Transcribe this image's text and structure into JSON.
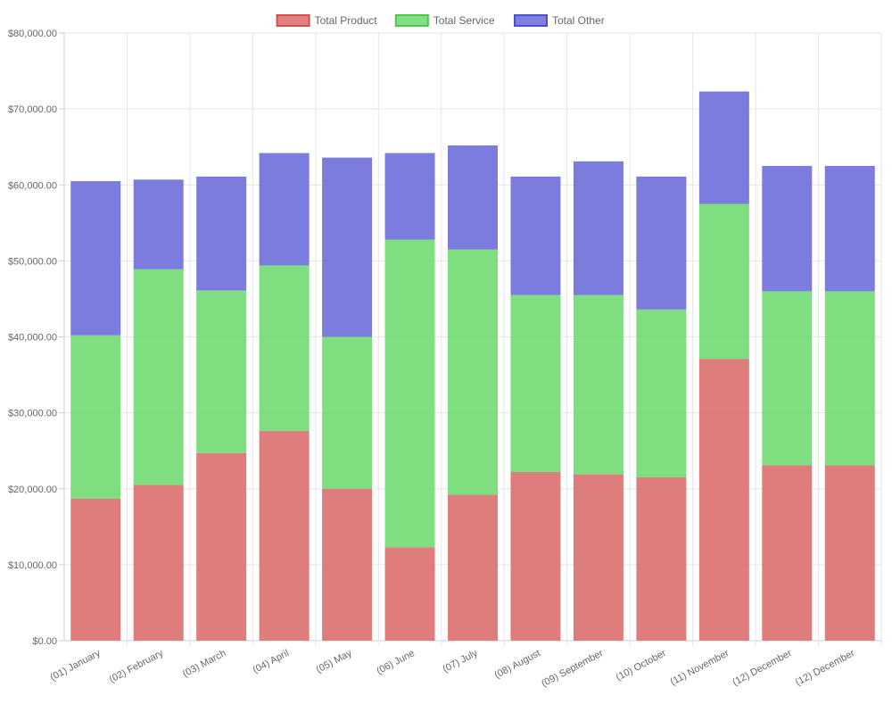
{
  "chart_data": {
    "type": "bar",
    "stacked": true,
    "categories": [
      "(01) January",
      "(02) February",
      "(03) March",
      "(04) April",
      "(05) May",
      "(06) June",
      "(07) July",
      "(08) August",
      "(09) September",
      "(10) October",
      "(11) November",
      "(12) December",
      "(12) December"
    ],
    "series": [
      {
        "name": "Total Product",
        "color": "#db6b6b",
        "border_color": "#d84c4c",
        "values": [
          18700,
          20500,
          24700,
          27600,
          20000,
          12300,
          19200,
          22200,
          21900,
          21500,
          37100,
          23100,
          23100
        ]
      },
      {
        "name": "Total Service",
        "color": "#6dd96d",
        "border_color": "#48cc48",
        "values": [
          21500,
          28400,
          21400,
          21800,
          20000,
          40500,
          32300,
          23300,
          23600,
          22100,
          20400,
          22900,
          22900
        ]
      },
      {
        "name": "Total Other",
        "color": "#6a6adb",
        "border_color": "#4e4ecf",
        "values": [
          20300,
          11800,
          15000,
          14800,
          23600,
          11400,
          13700,
          15600,
          17600,
          17500,
          14800,
          16500,
          16500
        ]
      }
    ],
    "y_ticks": [
      "$0.00",
      "$10,000.00",
      "$20,000.00",
      "$30,000.00",
      "$40,000.00",
      "$50,000.00",
      "$60,000.00",
      "$70,000.00",
      "$80,000.00"
    ],
    "ylim": [
      0,
      80000
    ],
    "y_step": 10000,
    "grid": true,
    "legend_position": "top"
  }
}
